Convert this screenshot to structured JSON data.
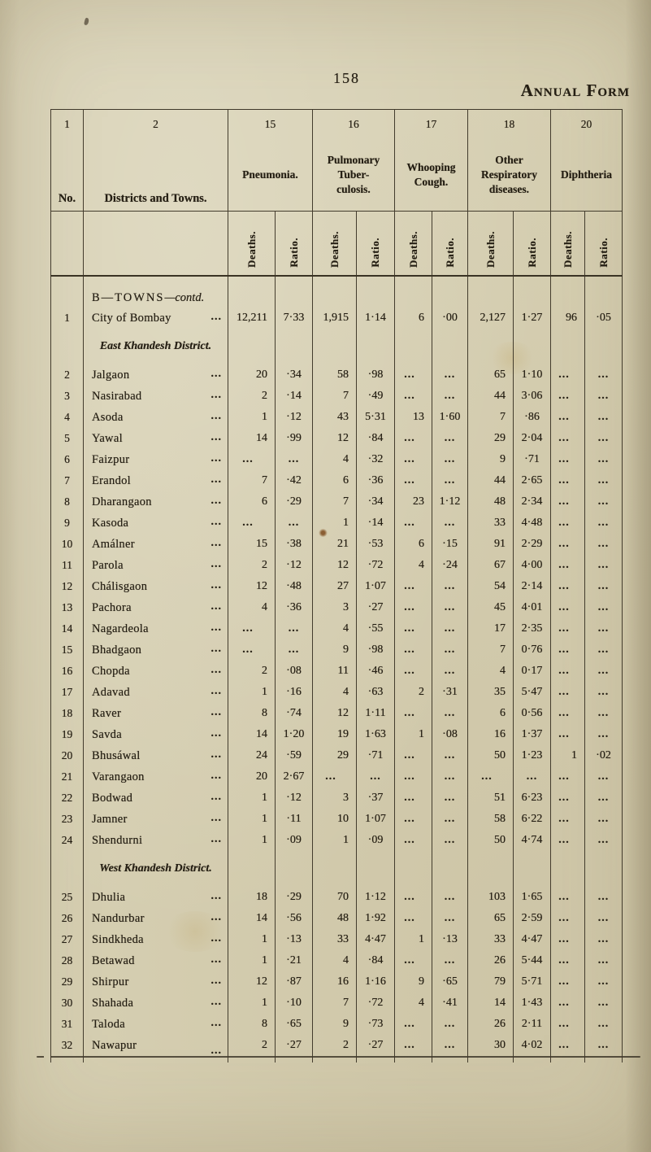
{
  "page": {
    "page_number": "158",
    "form_title": "Annual Form"
  },
  "table": {
    "column_numbers": [
      "1",
      "2",
      "15",
      "16",
      "17",
      "18",
      "20"
    ],
    "no_header": "No.",
    "districts_header": "Districts and Towns.",
    "groups": [
      {
        "label": "Pneumonia."
      },
      {
        "label": "Pulmonary Tuber-culosis."
      },
      {
        "label": "Whooping Cough."
      },
      {
        "label": "Other Respiratory diseases."
      },
      {
        "label": "Diphtheria"
      }
    ],
    "sub_headers": {
      "deaths": "Deaths.",
      "ratio": "Ratio."
    },
    "name_leader": "...",
    "rows": [
      {
        "section": "B—TOWNS",
        "suffix": "—contd.",
        "kind": "towns"
      },
      {
        "no": "1",
        "name": "City of Bombay",
        "v": [
          "12,211",
          "7·33",
          "1,915",
          "1·14",
          "6",
          "·00",
          "2,127",
          "1·27",
          "96",
          "·05"
        ]
      },
      {
        "section": "East Khandesh District.",
        "kind": "district"
      },
      {
        "no": "2",
        "name": "Jalgaon",
        "v": [
          "20",
          "·34",
          "58",
          "·98",
          "...",
          "...",
          "65",
          "1·10",
          "...",
          "..."
        ]
      },
      {
        "no": "3",
        "name": "Nasirabad",
        "v": [
          "2",
          "·14",
          "7",
          "·49",
          "...",
          "...",
          "44",
          "3·06",
          "...",
          "..."
        ]
      },
      {
        "no": "4",
        "name": "Asoda",
        "v": [
          "1",
          "·12",
          "43",
          "5·31",
          "13",
          "1·60",
          "7",
          "·86",
          "...",
          "..."
        ]
      },
      {
        "no": "5",
        "name": "Yawal",
        "v": [
          "14",
          "·99",
          "12",
          "·84",
          "...",
          "...",
          "29",
          "2·04",
          "...",
          "..."
        ]
      },
      {
        "no": "6",
        "name": "Faizpur",
        "v": [
          "...",
          "...",
          "4",
          "·32",
          "...",
          "...",
          "9",
          "·71",
          "...",
          "..."
        ]
      },
      {
        "no": "7",
        "name": "Erandol",
        "v": [
          "7",
          "·42",
          "6",
          "·36",
          "...",
          "...",
          "44",
          "2·65",
          "...",
          "..."
        ]
      },
      {
        "no": "8",
        "name": "Dharangaon",
        "v": [
          "6",
          "·29",
          "7",
          "·34",
          "23",
          "1·12",
          "48",
          "2·34",
          "...",
          "..."
        ]
      },
      {
        "no": "9",
        "name": "Kasoda",
        "v": [
          "...",
          "...",
          "1",
          "·14",
          "...",
          "...",
          "33",
          "4·48",
          "...",
          "..."
        ]
      },
      {
        "no": "10",
        "name": "Amálner",
        "v": [
          "15",
          "·38",
          "21",
          "·53",
          "6",
          "·15",
          "91",
          "2·29",
          "...",
          "..."
        ]
      },
      {
        "no": "11",
        "name": "Parola",
        "v": [
          "2",
          "·12",
          "12",
          "·72",
          "4",
          "·24",
          "67",
          "4·00",
          "...",
          "..."
        ]
      },
      {
        "no": "12",
        "name": "Chálisgaon",
        "v": [
          "12",
          "·48",
          "27",
          "1·07",
          "...",
          "...",
          "54",
          "2·14",
          "...",
          "..."
        ]
      },
      {
        "no": "13",
        "name": "Pachora",
        "v": [
          "4",
          "·36",
          "3",
          "·27",
          "...",
          "...",
          "45",
          "4·01",
          "...",
          "..."
        ]
      },
      {
        "no": "14",
        "name": "Nagardeola",
        "v": [
          "...",
          "...",
          "4",
          "·55",
          "...",
          "...",
          "17",
          "2·35",
          "...",
          "..."
        ]
      },
      {
        "no": "15",
        "name": "Bhadgaon",
        "v": [
          "...",
          "...",
          "9",
          "·98",
          "...",
          "...",
          "7",
          "0·76",
          "...",
          "..."
        ]
      },
      {
        "no": "16",
        "name": "Chopda",
        "v": [
          "2",
          "·08",
          "11",
          "·46",
          "...",
          "...",
          "4",
          "0·17",
          "...",
          "..."
        ]
      },
      {
        "no": "17",
        "name": "Adavad",
        "v": [
          "1",
          "·16",
          "4",
          "·63",
          "2",
          "·31",
          "35",
          "5·47",
          "...",
          "..."
        ]
      },
      {
        "no": "18",
        "name": "Raver",
        "v": [
          "8",
          "·74",
          "12",
          "1·11",
          "...",
          "...",
          "6",
          "0·56",
          "...",
          "..."
        ]
      },
      {
        "no": "19",
        "name": "Savda",
        "v": [
          "14",
          "1·20",
          "19",
          "1·63",
          "1",
          "·08",
          "16",
          "1·37",
          "...",
          "..."
        ]
      },
      {
        "no": "20",
        "name": "Bhusáwal",
        "v": [
          "24",
          "·59",
          "29",
          "·71",
          "...",
          "...",
          "50",
          "1·23",
          "1",
          "·02"
        ]
      },
      {
        "no": "21",
        "name": "Varangaon",
        "v": [
          "20",
          "2·67",
          "...",
          "...",
          "...",
          "...",
          "...",
          "...",
          "...",
          "..."
        ]
      },
      {
        "no": "22",
        "name": "Bodwad",
        "v": [
          "1",
          "·12",
          "3",
          "·37",
          "...",
          "...",
          "51",
          "6·23",
          "...",
          "..."
        ]
      },
      {
        "no": "23",
        "name": "Jamner",
        "v": [
          "1",
          "·11",
          "10",
          "1·07",
          "...",
          "...",
          "58",
          "6·22",
          "...",
          "..."
        ]
      },
      {
        "no": "24",
        "name": "Shendurni",
        "v": [
          "1",
          "·09",
          "1",
          "·09",
          "...",
          "...",
          "50",
          "4·74",
          "...",
          "..."
        ]
      },
      {
        "section": "West Khandesh District.",
        "kind": "district"
      },
      {
        "no": "25",
        "name": "Dhulia",
        "v": [
          "18",
          "·29",
          "70",
          "1·12",
          "...",
          "...",
          "103",
          "1·65",
          "...",
          "..."
        ]
      },
      {
        "no": "26",
        "name": "Nandurbar",
        "v": [
          "14",
          "·56",
          "48",
          "1·92",
          "...",
          "...",
          "65",
          "2·59",
          "...",
          "..."
        ]
      },
      {
        "no": "27",
        "name": "Sindkheda",
        "v": [
          "1",
          "·13",
          "33",
          "4·47",
          "1",
          "·13",
          "33",
          "4·47",
          "...",
          "..."
        ]
      },
      {
        "no": "28",
        "name": "Betawad",
        "v": [
          "1",
          "·21",
          "4",
          "·84",
          "...",
          "...",
          "26",
          "5·44",
          "...",
          "..."
        ]
      },
      {
        "no": "29",
        "name": "Shirpur",
        "v": [
          "12",
          "·87",
          "16",
          "1·16",
          "9",
          "·65",
          "79",
          "5·71",
          "...",
          "..."
        ]
      },
      {
        "no": "30",
        "name": "Shahada",
        "v": [
          "1",
          "·10",
          "7",
          "·72",
          "4",
          "·41",
          "14",
          "1·43",
          "...",
          "..."
        ]
      },
      {
        "no": "31",
        "name": "Taloda",
        "v": [
          "8",
          "·65",
          "9",
          "·73",
          "...",
          "...",
          "26",
          "2·11",
          "...",
          "..."
        ]
      },
      {
        "no": "32",
        "name": "Nawapur",
        "v": [
          "2",
          "·27",
          "2",
          "·27",
          "...",
          "...",
          "30",
          "4·02",
          "...",
          "..."
        ]
      }
    ]
  }
}
